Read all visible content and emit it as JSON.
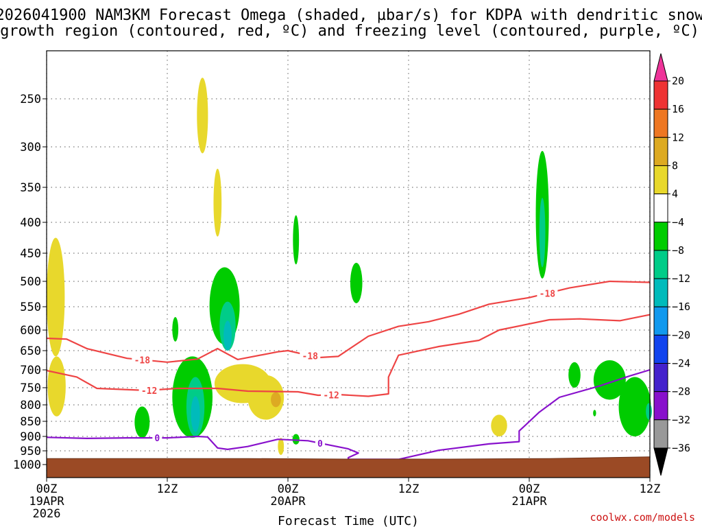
{
  "chart_data": {
    "type": "time-height cross section",
    "title_line1": "2026041900 NAM3KM Forecast Omega (shaded, µbar/s) for KDPA with dendritic snow",
    "title_line2": "growth region (contoured, red, ºC) and freezing level (contoured, purple, ºC)",
    "xlabel": "Forecast Time (UTC)",
    "credit": "coolwx.com/models",
    "x_unit": "hours from 2026-04-19 00Z",
    "xlim": [
      0,
      60
    ],
    "x_ticks": [
      {
        "h": 0,
        "lines": [
          "00Z",
          "19APR",
          "2026"
        ]
      },
      {
        "h": 12,
        "lines": [
          "12Z"
        ]
      },
      {
        "h": 24,
        "lines": [
          "00Z",
          "20APR"
        ]
      },
      {
        "h": 36,
        "lines": [
          "12Z"
        ]
      },
      {
        "h": 48,
        "lines": [
          "00Z",
          "21APR"
        ]
      },
      {
        "h": 60,
        "lines": [
          "12Z"
        ]
      }
    ],
    "y_unit": "hPa",
    "ylim": [
      1000,
      200
    ],
    "y_ticks": [
      "250",
      "300",
      "350",
      "400",
      "450",
      "500",
      "550",
      "600",
      "650",
      "700",
      "750",
      "800",
      "850",
      "900",
      "950",
      "1000"
    ],
    "surface_pressure_hpa": [
      [
        0,
        978
      ],
      [
        20,
        978
      ],
      [
        30,
        980
      ],
      [
        40,
        980
      ],
      [
        50,
        978
      ],
      [
        60,
        972
      ]
    ],
    "colorbar": {
      "labels": [
        "20",
        "16",
        "12",
        "8",
        "4",
        "−4",
        "−8",
        "−12",
        "−16",
        "−20",
        "−24",
        "−28",
        "−32",
        "−36"
      ],
      "colors": [
        "#ee3399",
        "#ee3333",
        "#ee7722",
        "#ddaa22",
        "#e8d82c",
        "#ffffff",
        "#00cc00",
        "#00cc88",
        "#00bbbb",
        "#1199ee",
        "#1144ee",
        "#4422cc",
        "#8811cc",
        "#999999",
        "#000000"
      ]
    },
    "contours": [
      {
        "name": "isotherm -18C",
        "value": -18,
        "color": "#ee4444",
        "points": [
          [
            0,
            620
          ],
          [
            2,
            622
          ],
          [
            4,
            645
          ],
          [
            8,
            670
          ],
          [
            12,
            680
          ],
          [
            15,
            672
          ],
          [
            17,
            645
          ],
          [
            19,
            673
          ],
          [
            23,
            653
          ],
          [
            24,
            650
          ],
          [
            27,
            668
          ],
          [
            29,
            665
          ],
          [
            32,
            615
          ],
          [
            35,
            592
          ],
          [
            38,
            582
          ],
          [
            41,
            566
          ],
          [
            44,
            545
          ],
          [
            48,
            532
          ],
          [
            52,
            513
          ],
          [
            56,
            500
          ],
          [
            60,
            502
          ]
        ],
        "labels": [
          {
            "text": "-18",
            "h": 9.5
          },
          {
            "text": "-18",
            "h": 26.2
          },
          {
            "text": "-18",
            "h": 49.8
          }
        ]
      },
      {
        "name": "isotherm -12C",
        "value": -12,
        "color": "#ee4444",
        "points": [
          [
            0,
            702
          ],
          [
            3,
            720
          ],
          [
            5,
            752
          ],
          [
            10,
            758
          ],
          [
            13,
            752
          ],
          [
            17,
            752
          ],
          [
            20,
            760
          ],
          [
            25,
            762
          ],
          [
            27,
            772
          ],
          [
            29,
            770
          ],
          [
            32,
            775
          ],
          [
            34,
            768
          ],
          [
            34,
            720
          ],
          [
            35,
            662
          ],
          [
            39,
            640
          ],
          [
            43,
            625
          ],
          [
            45,
            600
          ],
          [
            50,
            578
          ],
          [
            53,
            576
          ],
          [
            57,
            580
          ],
          [
            60,
            567
          ]
        ],
        "labels": [
          {
            "text": "-12",
            "h": 10.2
          },
          {
            "text": "-12",
            "h": 28.3
          }
        ]
      },
      {
        "name": "freezing level 0C",
        "value": 0,
        "color": "#8811cc",
        "points": [
          [
            0,
            903
          ],
          [
            4,
            907
          ],
          [
            8,
            905
          ],
          [
            12,
            905
          ],
          [
            15,
            900
          ],
          [
            16,
            902
          ],
          [
            17,
            940
          ],
          [
            18,
            945
          ],
          [
            20,
            935
          ],
          [
            23,
            910
          ],
          [
            26,
            915
          ],
          [
            30,
            943
          ],
          [
            31,
            958
          ],
          [
            30,
            975
          ],
          [
            30,
            981
          ],
          [
            35,
            981
          ],
          [
            39,
            948
          ],
          [
            44,
            926
          ],
          [
            47,
            918
          ],
          [
            47,
            882
          ],
          [
            49,
            822
          ],
          [
            51,
            778
          ],
          [
            55,
            745
          ],
          [
            58,
            717
          ],
          [
            60,
            700
          ]
        ],
        "labels": [
          {
            "text": "0",
            "h": 11
          },
          {
            "text": "0",
            "h": 27.2
          }
        ]
      }
    ],
    "shaded_cells": [
      {
        "value": 5,
        "fill": "#e8d82c",
        "center_h": 0.9,
        "center_hpa": 545,
        "half_width_h": 0.9,
        "half_depth_hpa": 120
      },
      {
        "value": 5,
        "fill": "#e8d82c",
        "center_h": 1.0,
        "center_hpa": 750,
        "half_width_h": 0.9,
        "half_depth_hpa": 85
      },
      {
        "value": 5,
        "fill": "#e8d82c",
        "center_h": 15.5,
        "center_hpa": 268,
        "half_width_h": 0.55,
        "half_depth_hpa": 40
      },
      {
        "value": 5,
        "fill": "#e8d82c",
        "center_h": 17.0,
        "center_hpa": 375,
        "half_width_h": 0.4,
        "half_depth_hpa": 48
      },
      {
        "value": -6,
        "fill": "#00cc00",
        "center_h": 17.7,
        "center_hpa": 555,
        "half_width_h": 1.5,
        "half_depth_hpa": 80
      },
      {
        "value": -10,
        "fill": "#00cc88",
        "center_h": 18.0,
        "center_hpa": 595,
        "half_width_h": 0.8,
        "half_depth_hpa": 55
      },
      {
        "value": -14,
        "fill": "#00bbbb",
        "center_h": 18.0,
        "center_hpa": 615,
        "half_width_h": 0.4,
        "half_depth_hpa": 35
      },
      {
        "value": -6,
        "fill": "#00cc00",
        "center_h": 14.5,
        "center_hpa": 785,
        "half_width_h": 2.0,
        "half_depth_hpa": 120
      },
      {
        "value": -10,
        "fill": "#00cc88",
        "center_h": 14.8,
        "center_hpa": 810,
        "half_width_h": 0.9,
        "half_depth_hpa": 90
      },
      {
        "value": -14,
        "fill": "#00bbbb",
        "center_h": 14.8,
        "center_hpa": 830,
        "half_width_h": 0.45,
        "half_depth_hpa": 55
      },
      {
        "value": -6,
        "fill": "#00cc00",
        "center_h": 9.5,
        "center_hpa": 855,
        "half_width_h": 0.75,
        "half_depth_hpa": 50
      },
      {
        "value": -6,
        "fill": "#00cc00",
        "center_h": 12.8,
        "center_hpa": 600,
        "half_width_h": 0.3,
        "half_depth_hpa": 28
      },
      {
        "value": 5,
        "fill": "#e8d82c",
        "center_h": 19.5,
        "center_hpa": 740,
        "half_width_h": 2.8,
        "half_depth_hpa": 55
      },
      {
        "value": 5,
        "fill": "#e8d82c",
        "center_h": 21.8,
        "center_hpa": 780,
        "half_width_h": 1.8,
        "half_depth_hpa": 65
      },
      {
        "value": 10,
        "fill": "#ddaa22",
        "center_h": 22.8,
        "center_hpa": 785,
        "half_width_h": 0.5,
        "half_depth_hpa": 22
      },
      {
        "value": 5,
        "fill": "#e8d82c",
        "center_h": 23.3,
        "center_hpa": 935,
        "half_width_h": 0.3,
        "half_depth_hpa": 30
      },
      {
        "value": -6,
        "fill": "#00cc00",
        "center_h": 24.8,
        "center_hpa": 430,
        "half_width_h": 0.3,
        "half_depth_hpa": 40
      },
      {
        "value": -6,
        "fill": "#00cc00",
        "center_h": 24.8,
        "center_hpa": 910,
        "half_width_h": 0.35,
        "half_depth_hpa": 18
      },
      {
        "value": -6,
        "fill": "#00cc00",
        "center_h": 30.8,
        "center_hpa": 505,
        "half_width_h": 0.6,
        "half_depth_hpa": 38
      },
      {
        "value": 5,
        "fill": "#e8d82c",
        "center_h": 45.0,
        "center_hpa": 865,
        "half_width_h": 0.8,
        "half_depth_hpa": 35
      },
      {
        "value": -6,
        "fill": "#00cc00",
        "center_h": 49.3,
        "center_hpa": 400,
        "half_width_h": 0.65,
        "half_depth_hpa": 95
      },
      {
        "value": -10,
        "fill": "#00cc88",
        "center_h": 49.3,
        "center_hpa": 420,
        "half_width_h": 0.3,
        "half_depth_hpa": 55
      },
      {
        "value": -6,
        "fill": "#00cc00",
        "center_h": 52.5,
        "center_hpa": 715,
        "half_width_h": 0.6,
        "half_depth_hpa": 35
      },
      {
        "value": -6,
        "fill": "#00cc00",
        "center_h": 56.0,
        "center_hpa": 730,
        "half_width_h": 1.6,
        "half_depth_hpa": 55
      },
      {
        "value": -6,
        "fill": "#00cc00",
        "center_h": 58.5,
        "center_hpa": 810,
        "half_width_h": 1.6,
        "half_depth_hpa": 90
      },
      {
        "value": -10,
        "fill": "#00cc88",
        "center_h": 59.9,
        "center_hpa": 820,
        "half_width_h": 0.3,
        "half_depth_hpa": 25
      },
      {
        "value": -6,
        "fill": "#00cc00",
        "center_h": 54.5,
        "center_hpa": 825,
        "half_width_h": 0.15,
        "half_depth_hpa": 10
      }
    ]
  }
}
